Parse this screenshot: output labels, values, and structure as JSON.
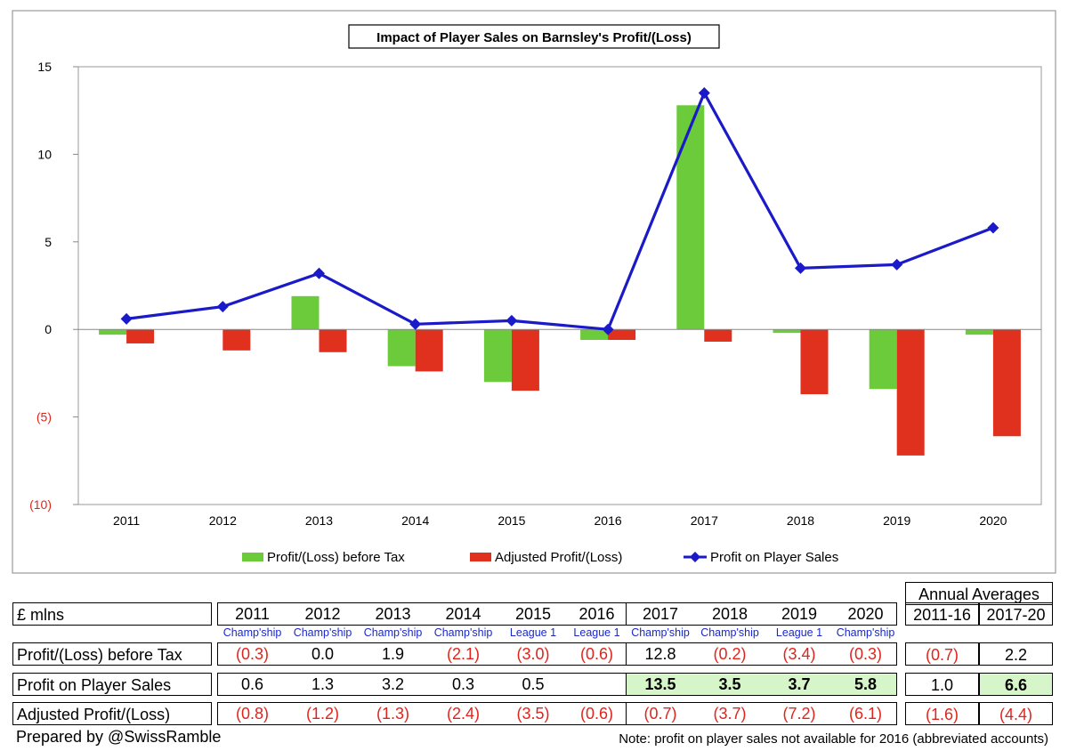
{
  "chart_data": {
    "type": "bar",
    "title": "Impact of Player Sales on Barnsley's Profit/(Loss)",
    "categories": [
      "2011",
      "2012",
      "2013",
      "2014",
      "2015",
      "2016",
      "2017",
      "2018",
      "2019",
      "2020"
    ],
    "series": [
      {
        "name": "Profit/(Loss) before Tax",
        "kind": "bar",
        "color": "#6bcb3a",
        "values": [
          -0.3,
          0.0,
          1.9,
          -2.1,
          -3.0,
          -0.6,
          12.8,
          -0.2,
          -3.4,
          -0.3
        ]
      },
      {
        "name": "Adjusted Profit/(Loss)",
        "kind": "bar",
        "color": "#e0301e",
        "values": [
          -0.8,
          -1.2,
          -1.3,
          -2.4,
          -3.5,
          -0.6,
          -0.7,
          -3.7,
          -7.2,
          -6.1
        ]
      },
      {
        "name": "Profit on Player Sales",
        "kind": "line",
        "color": "#1a1ac8",
        "values": [
          0.6,
          1.3,
          3.2,
          0.3,
          0.5,
          0.0,
          13.5,
          3.5,
          3.7,
          5.8
        ]
      }
    ],
    "yticks": [
      {
        "value": 15,
        "label": "15",
        "negative": false
      },
      {
        "value": 10,
        "label": "10",
        "negative": false
      },
      {
        "value": 5,
        "label": "5",
        "negative": false
      },
      {
        "value": 0,
        "label": "0",
        "negative": false
      },
      {
        "value": -5,
        "label": "(5)",
        "negative": true
      },
      {
        "value": -10,
        "label": "(10)",
        "negative": true
      }
    ],
    "ylim": [
      -10,
      15
    ],
    "xlabel": "",
    "ylabel": "",
    "legend_position": "bottom"
  },
  "table": {
    "unit_label": "£ mlns",
    "annual_averages_label": "Annual Averages",
    "years": [
      "2011",
      "2012",
      "2013",
      "2014",
      "2015",
      "2016",
      "2017",
      "2018",
      "2019",
      "2020"
    ],
    "avg_periods": [
      "2011-16",
      "2017-20"
    ],
    "leagues": [
      "Champ'ship",
      "Champ'ship",
      "Champ'ship",
      "Champ'ship",
      "League 1",
      "League 1",
      "Champ'ship",
      "Champ'ship",
      "League 1",
      "Champ'ship"
    ],
    "rows": [
      {
        "label": "Profit/(Loss) before Tax",
        "values": [
          "(0.3)",
          "0.0",
          "1.9",
          "(2.1)",
          "(3.0)",
          "(0.6)",
          "12.8",
          "(0.2)",
          "(3.4)",
          "(0.3)"
        ],
        "averages": [
          "(0.7)",
          "2.2"
        ]
      },
      {
        "label": "Profit on Player Sales",
        "values": [
          "0.6",
          "1.3",
          "3.2",
          "0.3",
          "0.5",
          "",
          "13.5",
          "3.5",
          "3.7",
          "5.8"
        ],
        "averages": [
          "1.0",
          "6.6"
        ]
      },
      {
        "label": "Adjusted Profit/(Loss)",
        "values": [
          "(0.8)",
          "(1.2)",
          "(1.3)",
          "(2.4)",
          "(3.5)",
          "(0.6)",
          "(0.7)",
          "(3.7)",
          "(7.2)",
          "(6.1)"
        ],
        "averages": [
          "(1.6)",
          "(4.4)"
        ]
      }
    ]
  },
  "footer": {
    "credit": "Prepared by @SwissRamble",
    "note": "Note: profit on player sales not available for 2016 (abbreviated accounts)"
  }
}
